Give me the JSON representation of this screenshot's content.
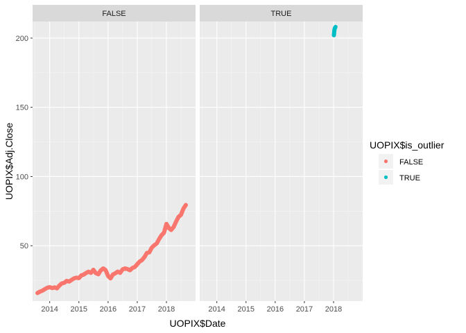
{
  "chart_data": {
    "type": "scatter",
    "facet_variable": "UOPIX$is_outlier",
    "facets": [
      "FALSE",
      "TRUE"
    ],
    "xlabel": "UOPIX$Date",
    "ylabel": "UOPIX$Adj.Close",
    "x_ticks": [
      "2014",
      "2015",
      "2016",
      "2017",
      "2018"
    ],
    "y_ticks": [
      50,
      100,
      150,
      200
    ],
    "xlim": [
      "2013-06-01",
      "2018-12-31"
    ],
    "ylim": [
      10,
      212
    ],
    "grid": true,
    "legend": {
      "title": "UOPIX$is_outlier",
      "position": "right",
      "entries": [
        {
          "label": "FALSE",
          "color": "#F8766D"
        },
        {
          "label": "TRUE",
          "color": "#00BFC4"
        }
      ]
    },
    "series": [
      {
        "name": "FALSE",
        "facet": "FALSE",
        "color": "#F8766D",
        "points": [
          [
            "2013-08-01",
            15.8
          ],
          [
            "2013-09-01",
            16.8
          ],
          [
            "2013-10-01",
            17.5
          ],
          [
            "2013-11-01",
            18.6
          ],
          [
            "2013-12-01",
            19.6
          ],
          [
            "2014-01-01",
            20.1
          ],
          [
            "2014-02-01",
            19.4
          ],
          [
            "2014-03-01",
            19.9
          ],
          [
            "2014-04-01",
            19.2
          ],
          [
            "2014-05-01",
            21.2
          ],
          [
            "2014-06-01",
            22.8
          ],
          [
            "2014-07-01",
            23.2
          ],
          [
            "2014-08-01",
            24.6
          ],
          [
            "2014-09-01",
            24.1
          ],
          [
            "2014-10-01",
            25.3
          ],
          [
            "2014-11-01",
            26.4
          ],
          [
            "2014-12-01",
            26.9
          ],
          [
            "2015-01-01",
            26.6
          ],
          [
            "2015-02-01",
            28.6
          ],
          [
            "2015-03-01",
            29.1
          ],
          [
            "2015-04-01",
            30.3
          ],
          [
            "2015-05-01",
            31.2
          ],
          [
            "2015-06-01",
            30.4
          ],
          [
            "2015-07-01",
            32.6
          ],
          [
            "2015-08-01",
            30.2
          ],
          [
            "2015-09-01",
            29.4
          ],
          [
            "2015-10-01",
            32.1
          ],
          [
            "2015-11-01",
            33.6
          ],
          [
            "2015-12-01",
            32.4
          ],
          [
            "2016-01-01",
            28.1
          ],
          [
            "2016-02-01",
            26.4
          ],
          [
            "2016-03-01",
            29.2
          ],
          [
            "2016-04-01",
            30.1
          ],
          [
            "2016-05-01",
            31.3
          ],
          [
            "2016-06-01",
            30.4
          ],
          [
            "2016-07-01",
            32.9
          ],
          [
            "2016-08-01",
            33.6
          ],
          [
            "2016-09-01",
            33.1
          ],
          [
            "2016-10-01",
            32.3
          ],
          [
            "2016-11-01",
            33.9
          ],
          [
            "2016-12-01",
            34.6
          ],
          [
            "2017-01-01",
            36.6
          ],
          [
            "2017-02-01",
            38.6
          ],
          [
            "2017-03-01",
            39.6
          ],
          [
            "2017-04-01",
            41.8
          ],
          [
            "2017-05-01",
            44.8
          ],
          [
            "2017-06-01",
            45.3
          ],
          [
            "2017-07-01",
            48.6
          ],
          [
            "2017-08-01",
            50.3
          ],
          [
            "2017-09-01",
            51.6
          ],
          [
            "2017-10-01",
            54.8
          ],
          [
            "2017-11-01",
            57.6
          ],
          [
            "2017-12-01",
            59.4
          ],
          [
            "2018-01-01",
            65.8
          ],
          [
            "2018-02-01",
            62.8
          ],
          [
            "2018-03-01",
            61.4
          ],
          [
            "2018-04-01",
            63.6
          ],
          [
            "2018-05-01",
            67.4
          ],
          [
            "2018-06-01",
            70.8
          ],
          [
            "2018-07-01",
            72.3
          ],
          [
            "2018-08-01",
            76.8
          ],
          [
            "2018-09-01",
            79.4
          ]
        ]
      },
      {
        "name": "TRUE",
        "facet": "TRUE",
        "color": "#00BFC4",
        "points": [
          [
            "2018-01-05",
            202.1
          ],
          [
            "2018-01-12",
            206.2
          ],
          [
            "2018-01-18",
            207.3
          ],
          [
            "2018-01-25",
            208.1
          ]
        ]
      }
    ]
  }
}
